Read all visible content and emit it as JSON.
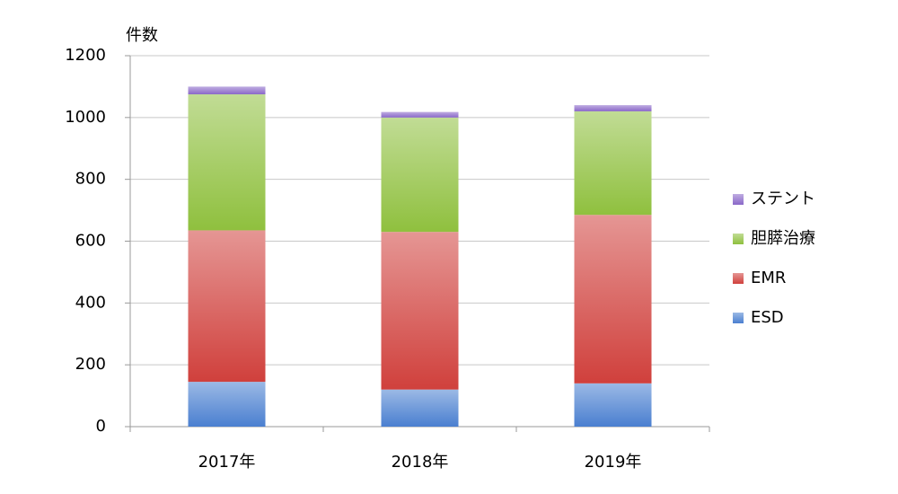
{
  "chart_data": {
    "type": "stacked_bar",
    "y_axis_label": "件数",
    "categories": [
      "2017年",
      "2018年",
      "2019年"
    ],
    "series": [
      {
        "name": "ESD",
        "color": "#4a7fd0",
        "values": [
          145,
          120,
          140
        ]
      },
      {
        "name": "EMR",
        "color": "#d0403c",
        "values": [
          490,
          510,
          545
        ]
      },
      {
        "name": "胆膵治療",
        "color": "#8fc03e",
        "values": [
          440,
          370,
          335
        ]
      },
      {
        "name": "ステント",
        "color": "#8a68c8",
        "values": [
          25,
          18,
          20
        ]
      }
    ],
    "ylim": [
      0,
      1200
    ],
    "yticks": [
      0,
      200,
      400,
      600,
      800,
      1000,
      1200
    ],
    "grid": true,
    "legend": "right"
  }
}
